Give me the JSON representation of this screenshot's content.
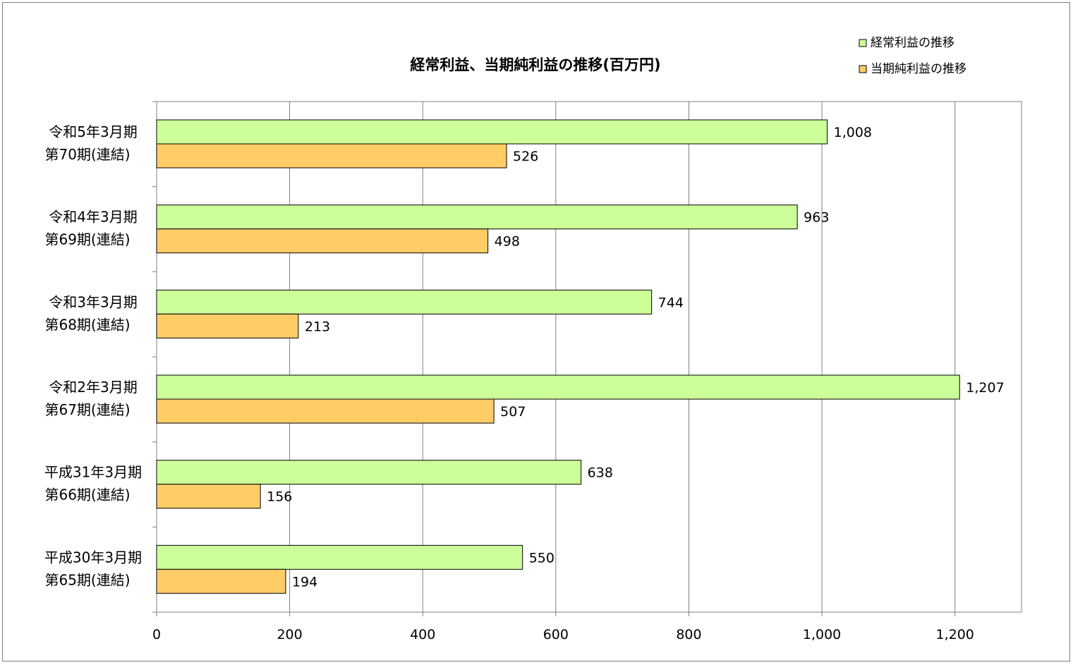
{
  "chart_data": {
    "type": "bar",
    "orientation": "horizontal",
    "title": "経常利益、当期純利益の推移(百万円)",
    "categories": [
      [
        "令和5年3月期",
        "第70期(連結)"
      ],
      [
        "令和4年3月期",
        "第69期(連結)"
      ],
      [
        "令和3年3月期",
        "第68期(連結)"
      ],
      [
        "令和2年3月期",
        "第67期(連結)"
      ],
      [
        "平成31年3月期",
        "第66期(連結)"
      ],
      [
        "平成30年3月期",
        "第65期(連結)"
      ]
    ],
    "series": [
      {
        "name": "経常利益の推移",
        "color": "#ccff99",
        "values": [
          1008,
          963,
          744,
          1207,
          638,
          550
        ],
        "labels": [
          "1,008",
          "963",
          "744",
          "1,207",
          "638",
          "550"
        ]
      },
      {
        "name": "当期純利益の推移",
        "color": "#ffcc66",
        "values": [
          526,
          498,
          213,
          507,
          156,
          194
        ],
        "labels": [
          "526",
          "498",
          "213",
          "507",
          "156",
          "194"
        ]
      }
    ],
    "xlim": [
      0,
      1300
    ],
    "xticks": [
      0,
      200,
      400,
      600,
      800,
      1000,
      1200
    ],
    "xtick_labels": [
      "0",
      "200",
      "400",
      "600",
      "800",
      "1,000",
      "1,200"
    ],
    "grid": true,
    "legend_position": "top-right"
  }
}
